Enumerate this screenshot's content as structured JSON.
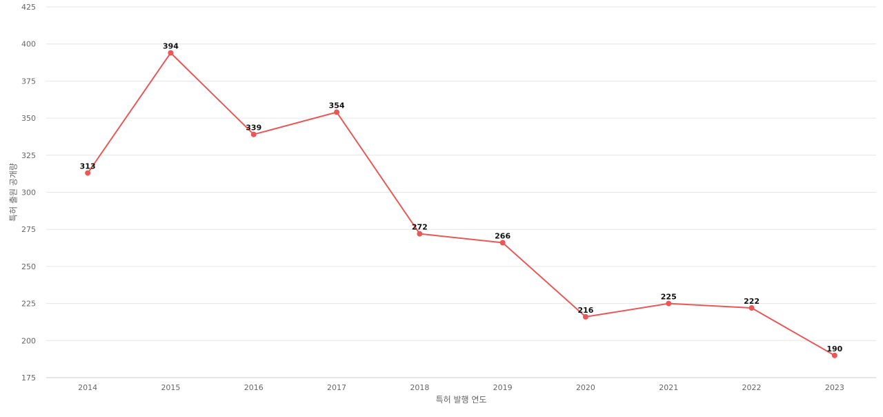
{
  "chart_data": {
    "type": "line",
    "title": "",
    "xlabel": "특허 발행 연도",
    "ylabel": "특허 출원 공개량",
    "x": [
      "2014",
      "2015",
      "2016",
      "2017",
      "2018",
      "2019",
      "2020",
      "2021",
      "2022",
      "2023"
    ],
    "series": [
      {
        "values": [
          313,
          394,
          339,
          354,
          272,
          266,
          216,
          225,
          222,
          190
        ],
        "color": "#eb5757"
      }
    ],
    "ylim": [
      175,
      425
    ],
    "yticks": [
      175,
      200,
      225,
      250,
      275,
      300,
      325,
      350,
      375,
      400,
      425
    ],
    "grid": true,
    "legend": "none"
  }
}
